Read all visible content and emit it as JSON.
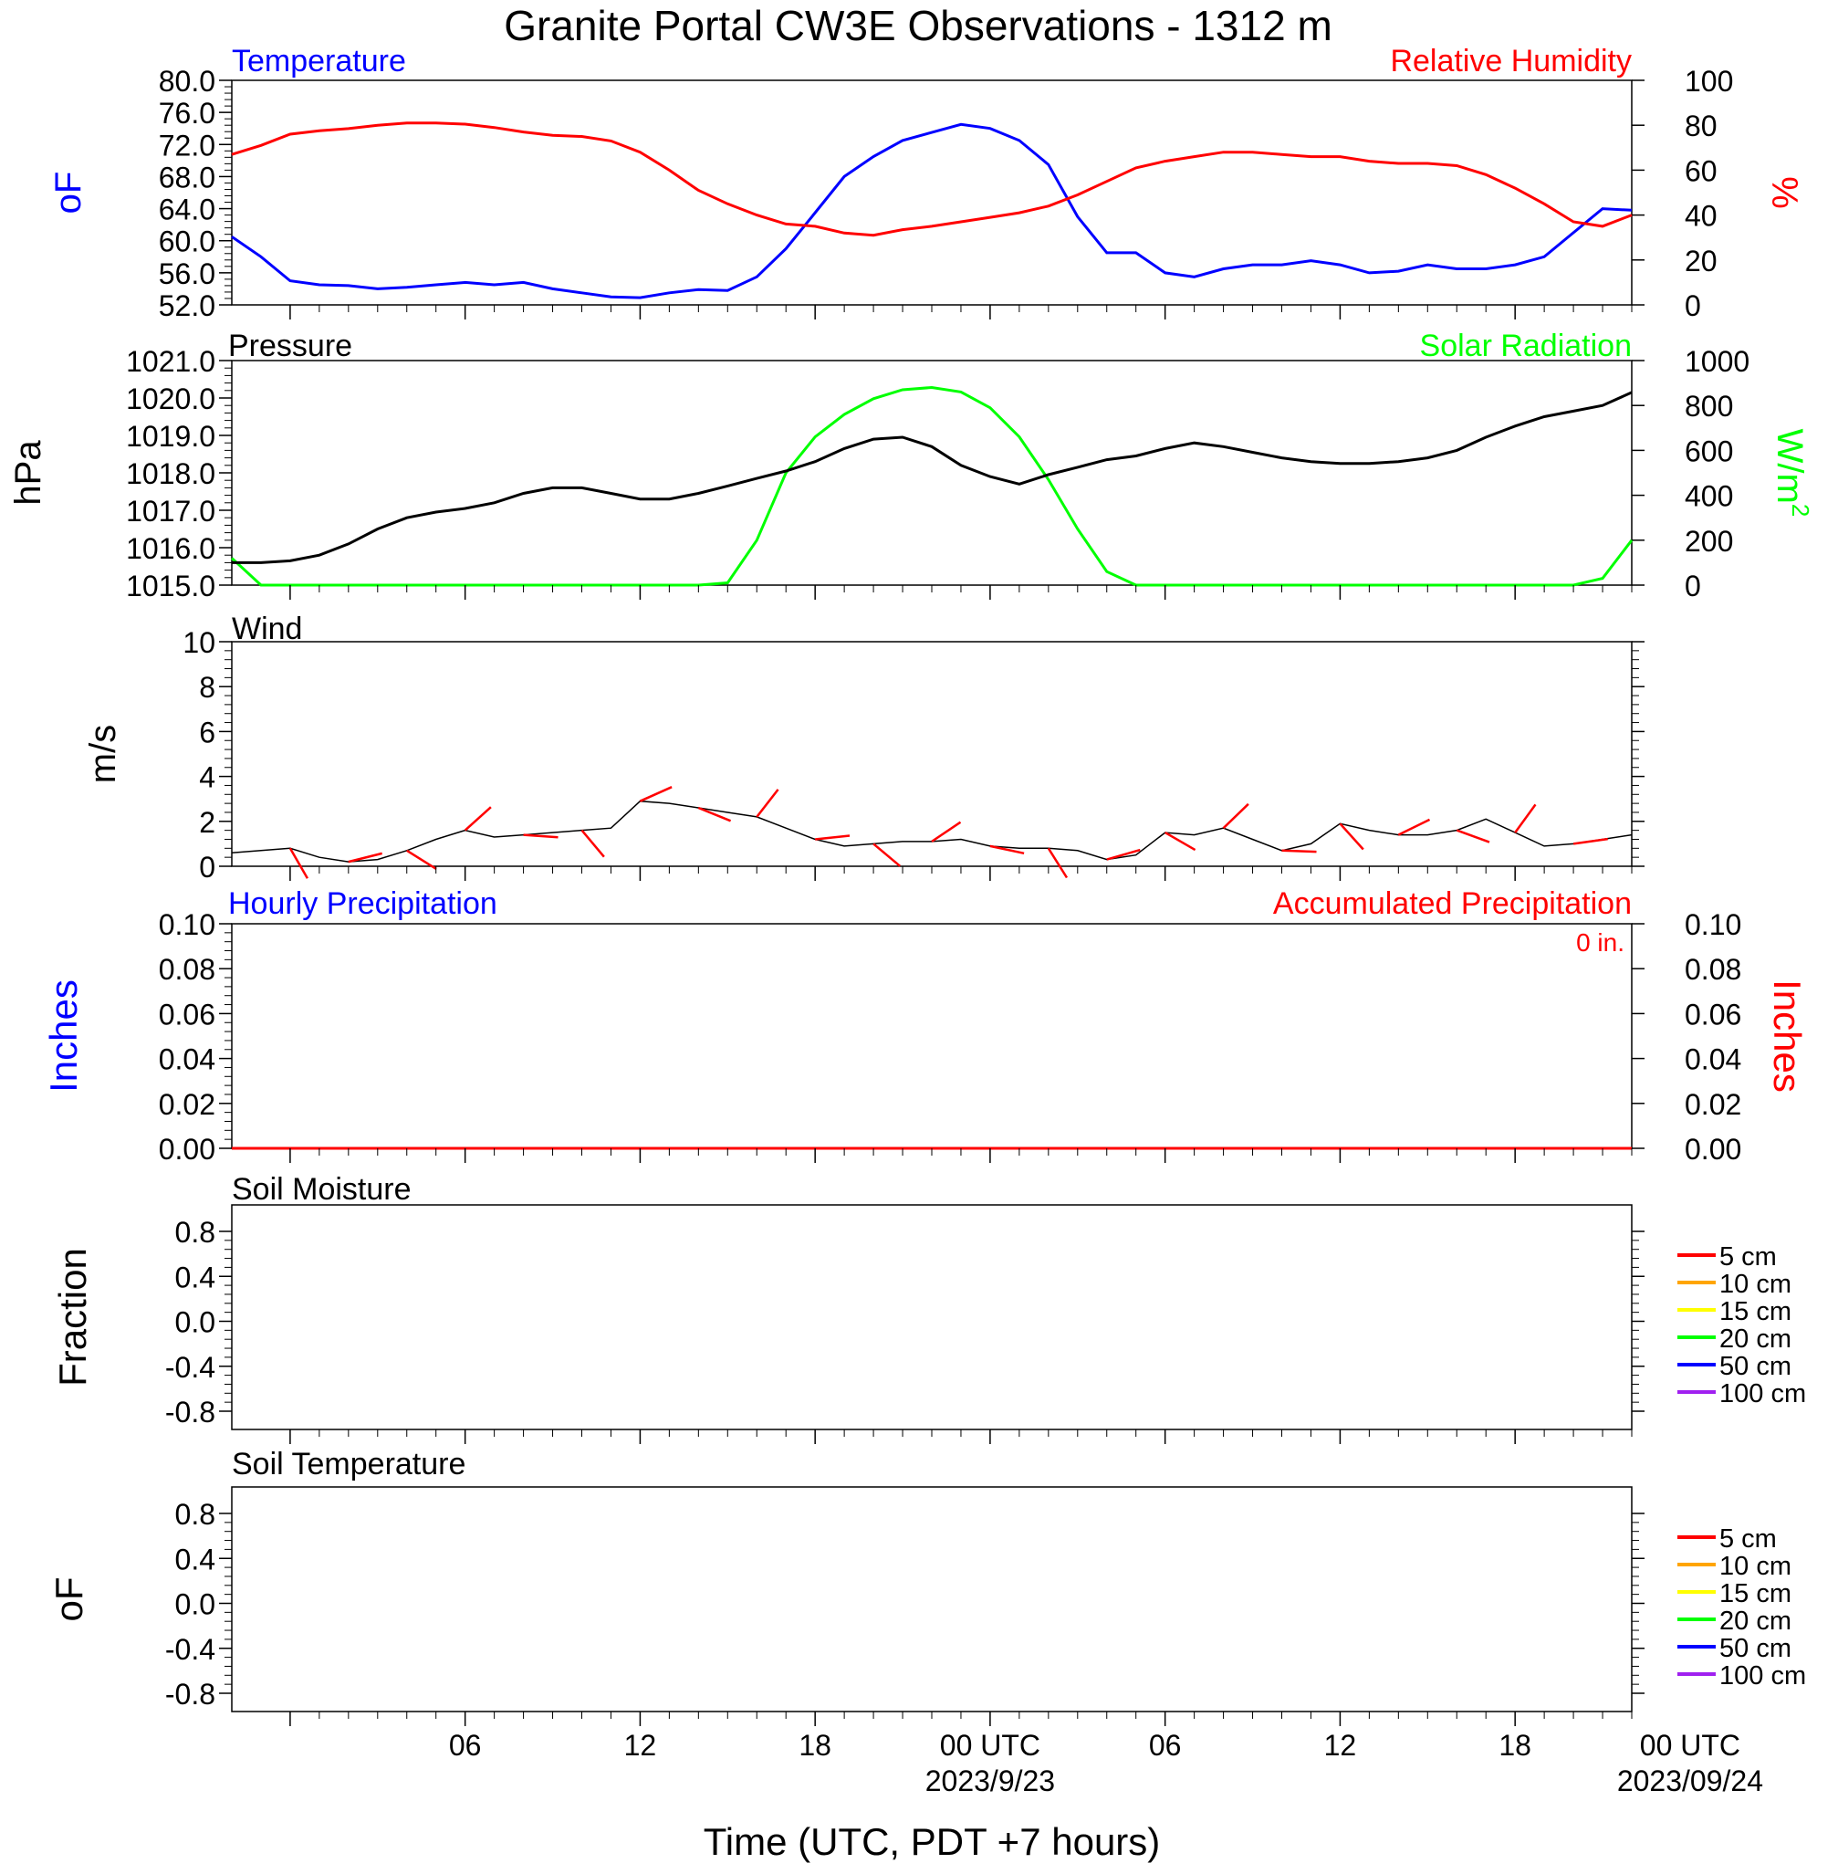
{
  "title": "Granite Portal CW3E Observations - 1312 m",
  "xlabel": "Time (UTC, PDT +7 hours)",
  "x_axis": {
    "range_hours": [
      -2,
      46
    ],
    "ticks": [
      {
        "hour": 6,
        "label": "06",
        "date": ""
      },
      {
        "hour": 12,
        "label": "12",
        "date": ""
      },
      {
        "hour": 18,
        "label": "18",
        "date": ""
      },
      {
        "hour": 24,
        "label": "00 UTC",
        "date": "2023/9/23"
      },
      {
        "hour": 30,
        "label": "06",
        "date": ""
      },
      {
        "hour": 36,
        "label": "12",
        "date": ""
      },
      {
        "hour": 42,
        "label": "18",
        "date": ""
      },
      {
        "hour": 48,
        "label": "00 UTC",
        "date": "2023/09/24"
      }
    ]
  },
  "colors": {
    "temperature": "#0000ff",
    "humidity": "#ff0000",
    "pressure": "#000000",
    "solar": "#00ff00",
    "wind_speed": "#000000",
    "wind_barb": "#ff0000",
    "hourly_precip": "#0000ff",
    "accum_precip": "#ff0000"
  },
  "panels": {
    "temp_rh": {
      "left_title": "Temperature",
      "right_title": "Relative Humidity",
      "left_unit": "oF",
      "right_unit": "%",
      "left_ticks": [
        "52.0",
        "56.0",
        "60.0",
        "64.0",
        "68.0",
        "72.0",
        "76.0",
        "80.0"
      ],
      "right_ticks": [
        "0",
        "20",
        "40",
        "60",
        "80",
        "100"
      ]
    },
    "pressure_solar": {
      "left_title": "Pressure",
      "right_title": "Solar Radiation",
      "left_unit": "hPa",
      "right_unit": "W/m",
      "right_unit_sup": "2",
      "left_ticks": [
        "1015.0",
        "1016.0",
        "1017.0",
        "1018.0",
        "1019.0",
        "1020.0",
        "1021.0"
      ],
      "right_ticks": [
        "0",
        "200",
        "400",
        "600",
        "800",
        "1000"
      ]
    },
    "wind": {
      "left_title": "Wind",
      "left_unit": "m/s",
      "left_ticks": [
        "0",
        "2",
        "4",
        "6",
        "8",
        "10"
      ]
    },
    "precip": {
      "left_title": "Hourly Precipitation",
      "right_title": "Accumulated Precipitation",
      "total_label": "0 in.",
      "left_unit": "Inches",
      "right_unit": "Inches",
      "left_ticks": [
        "0.00",
        "0.02",
        "0.04",
        "0.06",
        "0.08",
        "0.10"
      ],
      "right_ticks": [
        "0.00",
        "0.02",
        "0.04",
        "0.06",
        "0.08",
        "0.10"
      ]
    },
    "soil_moisture": {
      "left_title": "Soil Moisture",
      "left_unit": "Fraction",
      "left_ticks": [
        "-0.8",
        "-0.4",
        "0.0",
        "0.4",
        "0.8"
      ]
    },
    "soil_temp": {
      "left_title": "Soil Temperature",
      "left_unit": "oF",
      "left_ticks": [
        "-0.8",
        "-0.4",
        "0.0",
        "0.4",
        "0.8"
      ]
    }
  },
  "soil_legend": [
    {
      "label": "5 cm",
      "color": "#ff0000"
    },
    {
      "label": "10 cm",
      "color": "#ffa500"
    },
    {
      "label": "15 cm",
      "color": "#ffff00"
    },
    {
      "label": "20 cm",
      "color": "#00ff00"
    },
    {
      "label": "50 cm",
      "color": "#0000ff"
    },
    {
      "label": "100 cm",
      "color": "#a020f0"
    }
  ],
  "chart_data": [
    {
      "type": "line",
      "title": "Temperature",
      "ylabel": "oF",
      "ylim": [
        52,
        80
      ],
      "series": [
        {
          "name": "Temperature",
          "color": "#0000ff",
          "x": [
            -2,
            -1,
            0,
            1,
            2,
            3,
            4,
            5,
            6,
            7,
            8,
            9,
            10,
            11,
            12,
            13,
            14,
            15,
            16,
            17,
            18,
            19,
            20,
            21,
            22,
            23,
            24,
            25,
            26,
            27,
            28,
            29,
            30,
            31,
            32,
            33,
            34,
            35,
            36,
            37,
            38,
            39,
            40,
            41,
            42,
            43,
            44,
            45,
            46
          ],
          "y": [
            60.5,
            58,
            55,
            54.5,
            54.4,
            54,
            54.2,
            54.5,
            54.8,
            54.5,
            54.8,
            54,
            53.5,
            53,
            52.9,
            53.5,
            53.9,
            53.8,
            55.5,
            59,
            63.5,
            68,
            70.5,
            72.5,
            73.5,
            74.5,
            74,
            72.5,
            69.5,
            63,
            58.5,
            58.5,
            56,
            55.5,
            56.5,
            57,
            57,
            57.5,
            57,
            56,
            56.2,
            57,
            56.5,
            56.5,
            57,
            58,
            61,
            64,
            63.8
          ]
        }
      ]
    },
    {
      "type": "line",
      "title": "Relative Humidity",
      "ylabel": "%",
      "ylim": [
        0,
        100
      ],
      "series": [
        {
          "name": "Relative Humidity",
          "color": "#ff0000",
          "x": [
            -2,
            -1,
            0,
            1,
            2,
            3,
            4,
            5,
            6,
            7,
            8,
            9,
            10,
            11,
            12,
            13,
            14,
            15,
            16,
            17,
            18,
            19,
            20,
            21,
            22,
            23,
            24,
            25,
            26,
            27,
            28,
            29,
            30,
            31,
            32,
            33,
            34,
            35,
            36,
            37,
            38,
            39,
            40,
            41,
            42,
            43,
            44,
            45,
            46
          ],
          "y": [
            67,
            71,
            76,
            77.5,
            78.5,
            80,
            81,
            81,
            80.5,
            79,
            77,
            75.5,
            75,
            73,
            68,
            60,
            51,
            45,
            40,
            36,
            35,
            32,
            31,
            33.5,
            35,
            37,
            39,
            41,
            44,
            49,
            55,
            61,
            64,
            66,
            68,
            68,
            67,
            66,
            66,
            64,
            63,
            63,
            62,
            58,
            52,
            45,
            37,
            35,
            40
          ]
        }
      ]
    },
    {
      "type": "line",
      "title": "Pressure",
      "ylabel": "hPa",
      "ylim": [
        1015,
        1021
      ],
      "series": [
        {
          "name": "Pressure",
          "color": "#000000",
          "x": [
            -2,
            -1,
            0,
            1,
            2,
            3,
            4,
            5,
            6,
            7,
            8,
            9,
            10,
            11,
            12,
            13,
            14,
            15,
            16,
            17,
            18,
            19,
            20,
            21,
            22,
            23,
            24,
            25,
            26,
            27,
            28,
            29,
            30,
            31,
            32,
            33,
            34,
            35,
            36,
            37,
            38,
            39,
            40,
            41,
            42,
            43,
            44,
            45,
            46
          ],
          "y": [
            1015.6,
            1015.6,
            1015.65,
            1015.8,
            1016.1,
            1016.5,
            1016.8,
            1016.95,
            1017.05,
            1017.2,
            1017.45,
            1017.6,
            1017.6,
            1017.45,
            1017.3,
            1017.3,
            1017.45,
            1017.65,
            1017.85,
            1018.05,
            1018.3,
            1018.65,
            1018.9,
            1018.95,
            1018.7,
            1018.2,
            1017.9,
            1017.7,
            1017.95,
            1018.15,
            1018.35,
            1018.45,
            1018.65,
            1018.8,
            1018.7,
            1018.55,
            1018.4,
            1018.3,
            1018.25,
            1018.25,
            1018.3,
            1018.4,
            1018.6,
            1018.95,
            1019.25,
            1019.5,
            1019.65,
            1019.8,
            1020.15
          ]
        }
      ]
    },
    {
      "type": "line",
      "title": "Solar Radiation",
      "ylabel": "W/m2",
      "ylim": [
        0,
        1000
      ],
      "series": [
        {
          "name": "Solar Radiation",
          "color": "#00ff00",
          "x": [
            -2,
            -1,
            0,
            1,
            2,
            3,
            4,
            5,
            6,
            7,
            8,
            9,
            10,
            11,
            12,
            13,
            14,
            15,
            16,
            17,
            18,
            19,
            20,
            21,
            22,
            23,
            24,
            25,
            26,
            27,
            28,
            29,
            30,
            31,
            32,
            33,
            34,
            35,
            36,
            37,
            38,
            39,
            40,
            41,
            42,
            43,
            44,
            45,
            46
          ],
          "y": [
            120,
            0,
            0,
            0,
            0,
            0,
            0,
            0,
            0,
            0,
            0,
            0,
            0,
            0,
            0,
            0,
            0,
            10,
            200,
            500,
            660,
            760,
            830,
            870,
            880,
            860,
            790,
            660,
            470,
            250,
            60,
            0,
            0,
            0,
            0,
            0,
            0,
            0,
            0,
            0,
            0,
            0,
            0,
            0,
            0,
            0,
            0,
            30,
            200
          ]
        }
      ]
    },
    {
      "type": "line",
      "title": "Wind",
      "ylabel": "m/s",
      "ylim": [
        0,
        10
      ],
      "series": [
        {
          "name": "Wind",
          "color": "#000000",
          "x": [
            -2,
            -1,
            0,
            1,
            2,
            3,
            4,
            5,
            6,
            7,
            8,
            9,
            10,
            11,
            12,
            13,
            14,
            15,
            16,
            17,
            18,
            19,
            20,
            21,
            22,
            23,
            24,
            25,
            26,
            27,
            28,
            29,
            30,
            31,
            32,
            33,
            34,
            35,
            36,
            37,
            38,
            39,
            40,
            41,
            42,
            43,
            44,
            45,
            46
          ],
          "y": [
            0.6,
            0.7,
            0.8,
            0.4,
            0.2,
            0.3,
            0.7,
            1.2,
            1.6,
            1.3,
            1.4,
            1.5,
            1.6,
            1.7,
            2.9,
            2.8,
            2.6,
            2.4,
            2.2,
            1.7,
            1.2,
            0.9,
            1,
            1.1,
            1.1,
            1.2,
            0.9,
            0.8,
            0.8,
            0.7,
            0.3,
            0.5,
            1.5,
            1.4,
            1.7,
            1.2,
            0.7,
            1,
            1.9,
            1.6,
            1.4,
            1.4,
            1.6,
            2.1,
            1.5,
            0.9,
            1,
            1.2,
            1.4
          ]
        }
      ]
    },
    {
      "type": "line",
      "title": "Hourly Precipitation",
      "ylabel": "Inches",
      "ylim": [
        0,
        0.1
      ],
      "series": [
        {
          "name": "Hourly Precipitation",
          "color": "#0000ff",
          "x": [
            -2,
            46
          ],
          "y": [
            0,
            0
          ]
        }
      ]
    },
    {
      "type": "line",
      "title": "Accumulated Precipitation",
      "ylabel": "Inches",
      "ylim": [
        0,
        0.1
      ],
      "series": [
        {
          "name": "Accumulated Precipitation",
          "color": "#ff0000",
          "x": [
            -2,
            46
          ],
          "y": [
            0,
            0
          ]
        }
      ]
    }
  ]
}
